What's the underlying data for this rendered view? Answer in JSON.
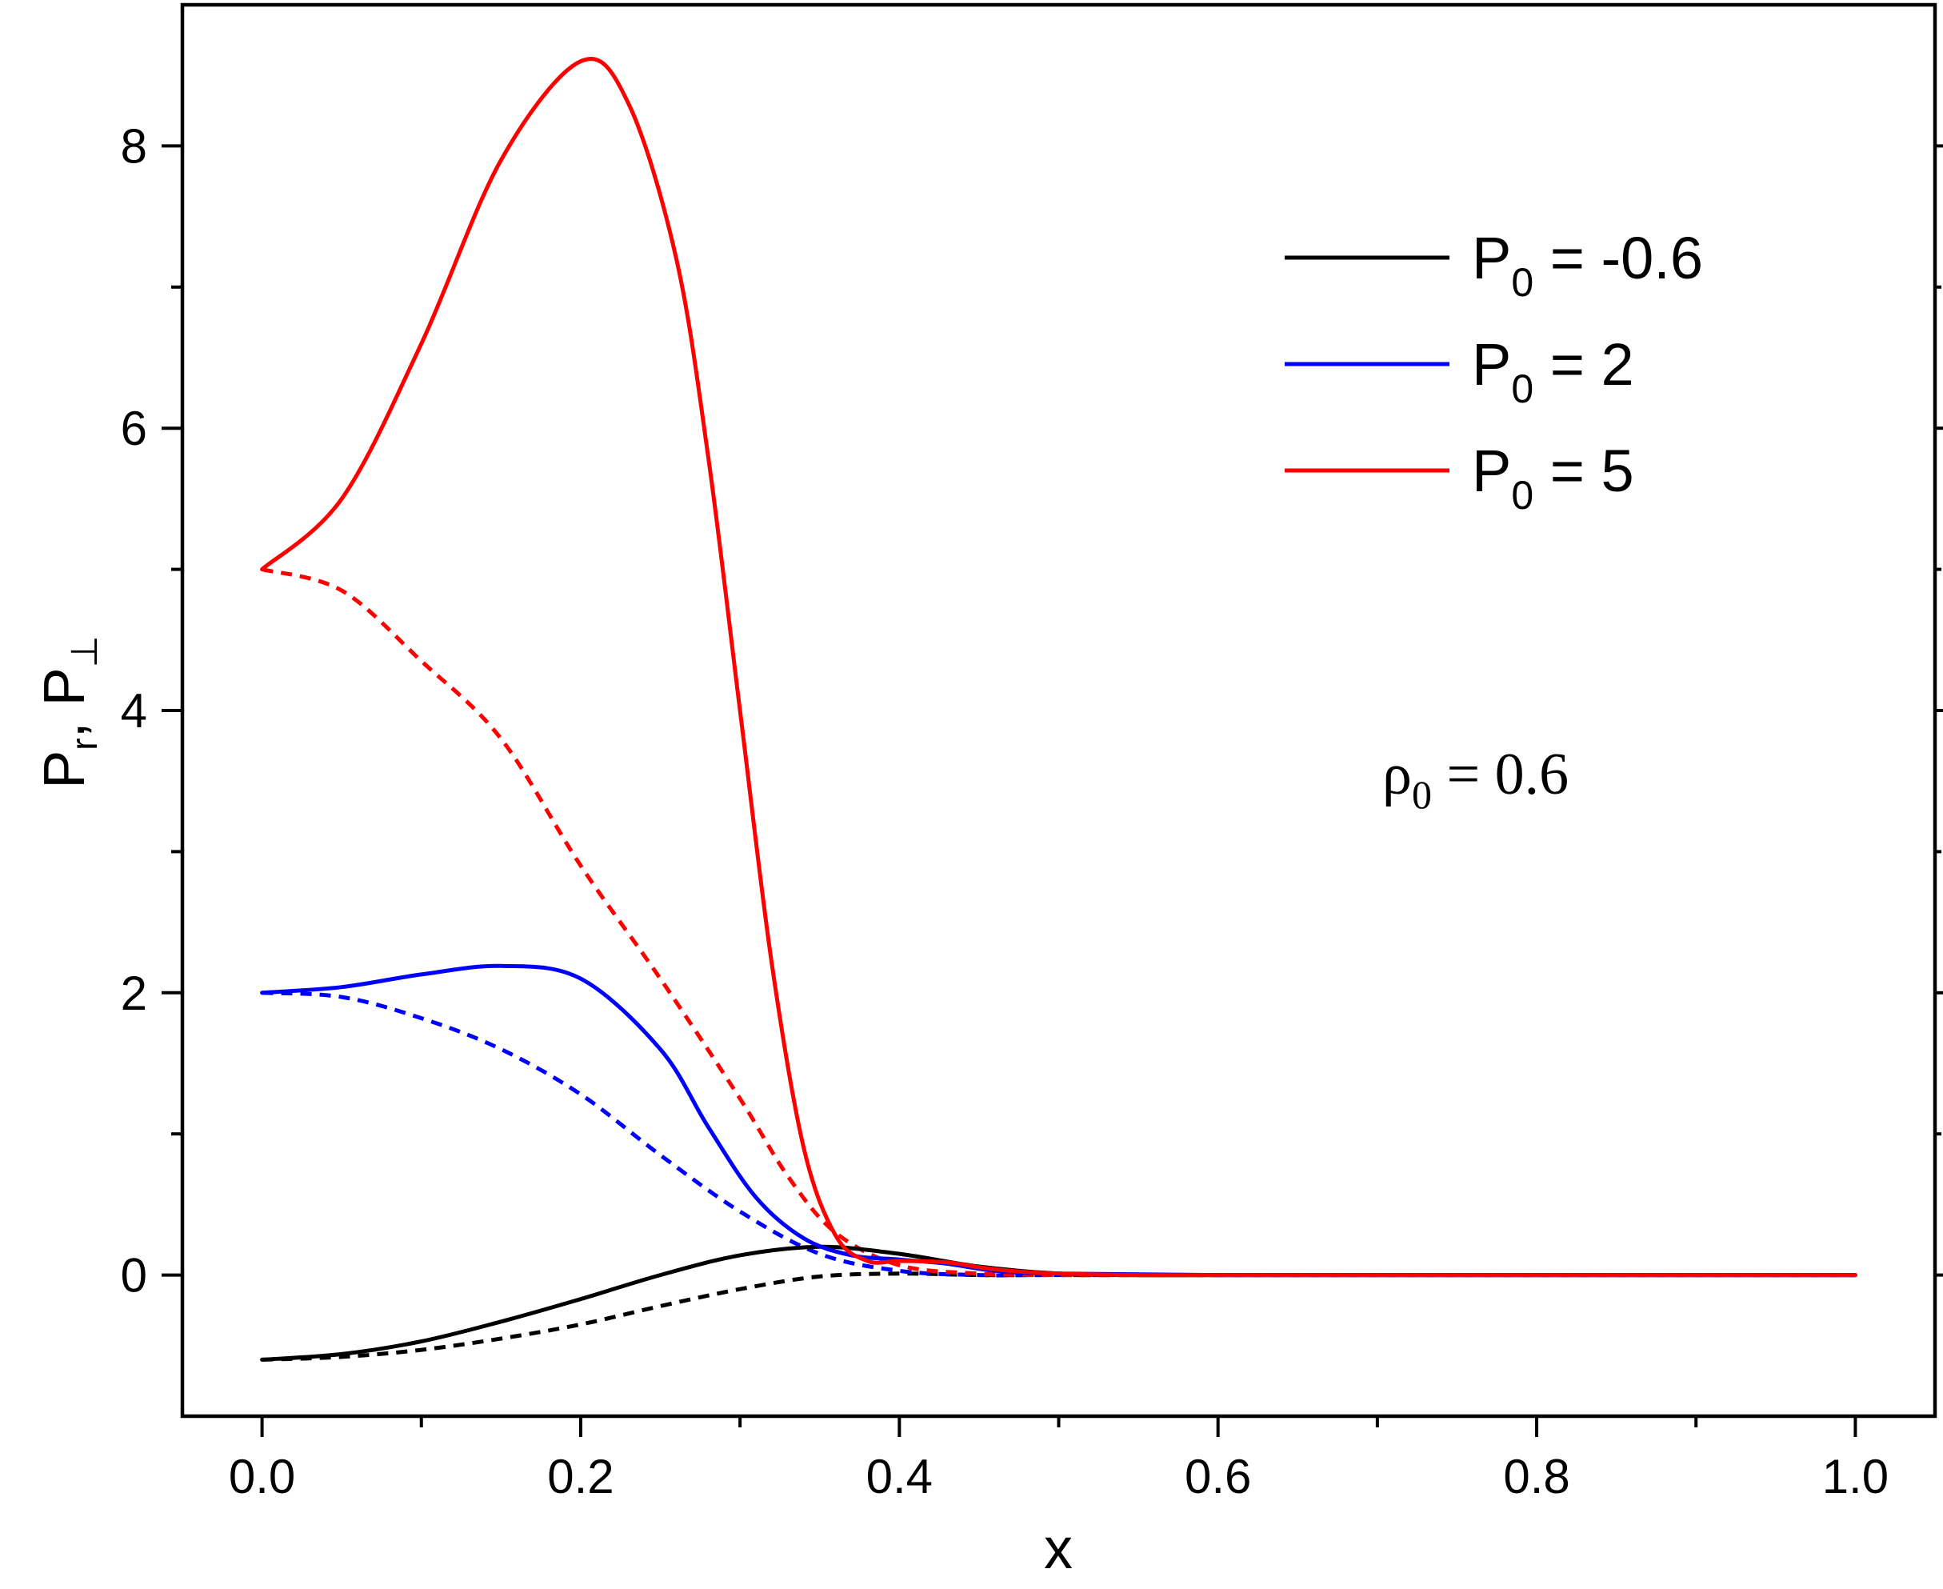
{
  "chart_data": {
    "type": "line",
    "xlabel": "x",
    "ylabel": {
      "main": "P",
      "sub1": "r",
      "sep": ",  P",
      "sub2": "⊥"
    },
    "xlim": [
      -0.05,
      1.05
    ],
    "ylim": [
      -1,
      9
    ],
    "xticks": [
      0.0,
      0.2,
      0.4,
      0.6,
      0.8,
      1.0
    ],
    "xtick_labels": [
      "0.0",
      "0.2",
      "0.4",
      "0.6",
      "0.8",
      "1.0"
    ],
    "yticks": [
      0,
      2,
      4,
      6,
      8
    ],
    "ytick_labels": [
      "0",
      "2",
      "4",
      "6",
      "8"
    ],
    "legend_position": "top-right",
    "legend": [
      {
        "main": "P",
        "sub": "0",
        "rest": " = -0.6",
        "color": "#000000"
      },
      {
        "main": "P",
        "sub": "0",
        "rest": " = 2",
        "color": "#0000ff"
      },
      {
        "main": "P",
        "sub": "0",
        "rest": " = 5",
        "color": "#ff0000"
      }
    ],
    "annotation": {
      "main": "ρ",
      "sub": "0",
      "rest": " = 0.6"
    },
    "series": [
      {
        "color": "#000000",
        "style": "solid",
        "x": [
          0,
          0.05,
          0.1,
          0.15,
          0.2,
          0.25,
          0.3,
          0.35,
          0.4,
          0.45,
          0.5,
          0.55,
          0.6,
          0.8,
          1.0
        ],
        "y": [
          -0.6,
          -0.56,
          -0.47,
          -0.33,
          -0.17,
          0.0,
          0.14,
          0.2,
          0.15,
          0.06,
          0.01,
          0.0,
          0.0,
          0.0,
          0.0
        ]
      },
      {
        "color": "#000000",
        "style": "dashed",
        "x": [
          0,
          0.05,
          0.1,
          0.15,
          0.2,
          0.25,
          0.3,
          0.35,
          0.4,
          0.45,
          0.5,
          0.6,
          0.8,
          1.0
        ],
        "y": [
          -0.6,
          -0.58,
          -0.53,
          -0.45,
          -0.35,
          -0.22,
          -0.1,
          -0.01,
          0.01,
          0.0,
          0.0,
          0.0,
          0.0,
          0.0
        ]
      },
      {
        "color": "#0000ff",
        "style": "solid",
        "x": [
          0,
          0.05,
          0.1,
          0.15,
          0.2,
          0.25,
          0.28,
          0.31,
          0.34,
          0.37,
          0.4,
          0.43,
          0.46,
          0.5,
          0.6,
          0.8,
          1.0
        ],
        "y": [
          2.0,
          2.04,
          2.13,
          2.19,
          2.1,
          1.6,
          1.05,
          0.55,
          0.26,
          0.14,
          0.11,
          0.08,
          0.03,
          0.01,
          0.0,
          0.0,
          0.0
        ]
      },
      {
        "color": "#0000ff",
        "style": "dashed",
        "x": [
          0,
          0.05,
          0.1,
          0.15,
          0.2,
          0.25,
          0.3,
          0.35,
          0.4,
          0.45,
          0.5,
          0.6,
          0.8,
          1.0
        ],
        "y": [
          2.0,
          1.97,
          1.82,
          1.6,
          1.28,
          0.85,
          0.45,
          0.15,
          0.03,
          0.0,
          0.0,
          0.0,
          0.0,
          0.0
        ]
      },
      {
        "color": "#ff0000",
        "style": "solid",
        "x": [
          0,
          0.05,
          0.1,
          0.15,
          0.2,
          0.23,
          0.26,
          0.28,
          0.3,
          0.32,
          0.34,
          0.36,
          0.38,
          0.4,
          0.43,
          0.46,
          0.5,
          0.55,
          0.6,
          0.8,
          1.0
        ],
        "y": [
          5.0,
          5.5,
          6.6,
          7.9,
          8.6,
          8.3,
          7.2,
          5.8,
          4.0,
          2.2,
          0.9,
          0.28,
          0.1,
          0.1,
          0.09,
          0.04,
          0.01,
          0.0,
          0.0,
          0.0,
          0.0
        ]
      },
      {
        "color": "#ff0000",
        "style": "dashed",
        "x": [
          0,
          0.05,
          0.1,
          0.15,
          0.2,
          0.25,
          0.3,
          0.33,
          0.36,
          0.4,
          0.45,
          0.5,
          0.6,
          0.8,
          1.0
        ],
        "y": [
          5.0,
          4.85,
          4.35,
          3.8,
          2.9,
          2.1,
          1.25,
          0.7,
          0.3,
          0.07,
          0.01,
          0.0,
          0.0,
          0.0,
          0.0
        ]
      }
    ]
  }
}
